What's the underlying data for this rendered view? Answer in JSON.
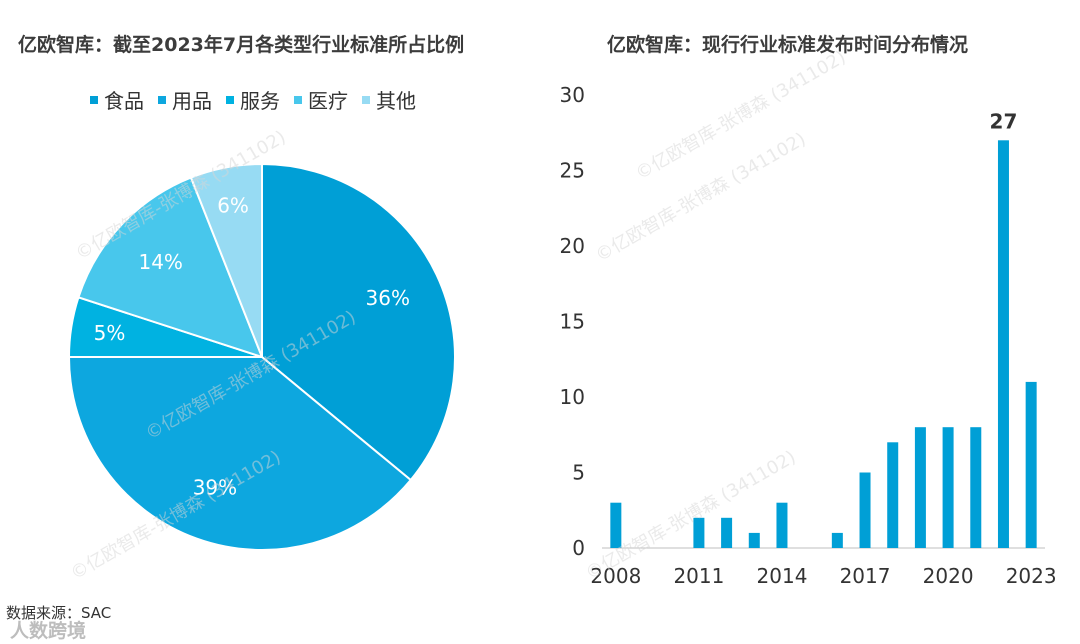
{
  "pie_title": "亿欧智库：截至2023年7月各类型行业标准所占比例",
  "bar_title": "亿欧智库：现行行业标准发布时间分布情况",
  "source": "数据来源：SAC",
  "watermark": "©亿欧智库-张博森 (341102)",
  "logo_text": "人数跨境",
  "chart_data": [
    {
      "type": "pie",
      "title": "亿欧智库：截至2023年7月各类型行业标准所占比例",
      "legend_position": "top",
      "slices": [
        {
          "name": "食品",
          "value": 36,
          "label": "36%",
          "color": "#009fd6"
        },
        {
          "name": "用品",
          "value": 39,
          "label": "39%",
          "color": "#0da7df"
        },
        {
          "name": "服务",
          "value": 5,
          "label": "5%",
          "color": "#00b2e1"
        },
        {
          "name": "医疗",
          "value": 14,
          "label": "14%",
          "color": "#48c7ec"
        },
        {
          "name": "其他",
          "value": 6,
          "label": "6%",
          "color": "#97dbf3"
        }
      ]
    },
    {
      "type": "bar",
      "title": "亿欧智库：现行行业标准发布时间分布情况",
      "x": [
        2008,
        2009,
        2010,
        2011,
        2012,
        2013,
        2014,
        2015,
        2016,
        2017,
        2018,
        2019,
        2020,
        2021,
        2022,
        2023
      ],
      "values": [
        3,
        0,
        0,
        2,
        2,
        1,
        3,
        0,
        1,
        5,
        7,
        8,
        8,
        8,
        27,
        11
      ],
      "xtick_labels": [
        "2008",
        "2011",
        "2014",
        "2017",
        "2020",
        "2023"
      ],
      "ytick_labels": [
        "0",
        "5",
        "10",
        "15",
        "20",
        "25",
        "30"
      ],
      "ylim": [
        0,
        30
      ],
      "annotation": {
        "x": 2022,
        "text": "27"
      },
      "bar_color": "#009fd6",
      "grid": false
    }
  ]
}
